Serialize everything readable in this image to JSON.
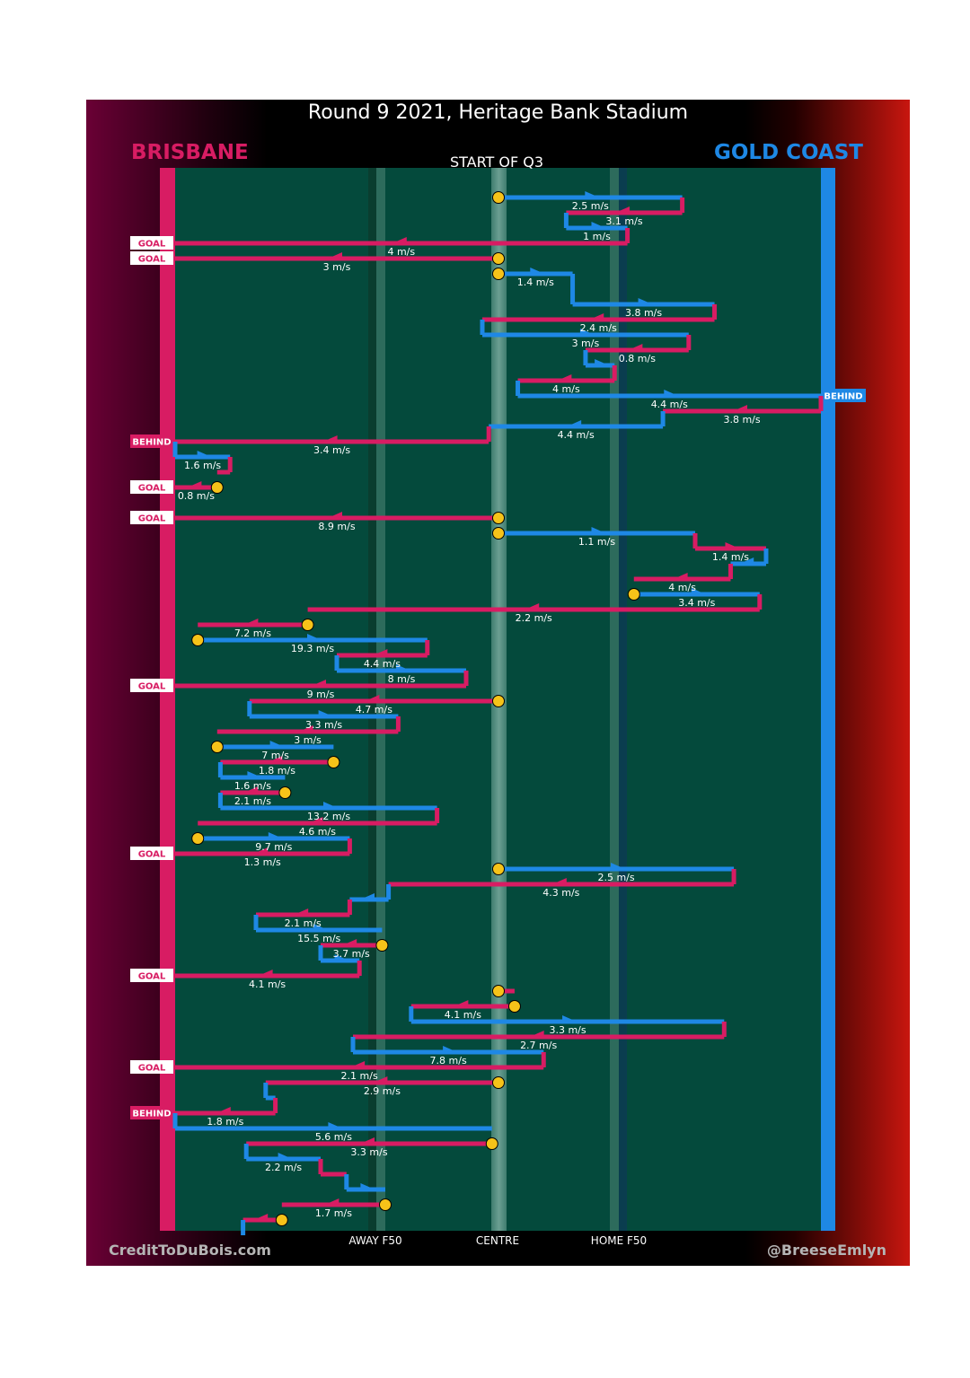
{
  "header": {
    "title": "Round 9 2021, Heritage Bank Stadium",
    "team_left": "BRISBANE",
    "team_right": "GOLD COAST",
    "period": "START OF Q3"
  },
  "footer": {
    "credit_left": "CreditToDuBois.com",
    "credit_right": "@BreeseEmlyn"
  },
  "colors": {
    "brisbane": "#d81c63",
    "goldcoast": "#1e88e5",
    "field": "#044a3c",
    "marker": "#f6c319"
  },
  "chart_data": {
    "type": "line",
    "title": "Round 9 2021, Heritage Bank Stadium",
    "subtitle": "START OF Q3",
    "x_axis": {
      "range": [
        -100,
        100
      ],
      "ticks": [
        {
          "value": -35,
          "label": "AWAY F50"
        },
        {
          "value": 0,
          "label": "CENTRE"
        },
        {
          "value": 35,
          "label": "HOME F50"
        }
      ]
    },
    "y_axis": {
      "description": "possession chains in time order (top to bottom)",
      "range": [
        0,
        70
      ]
    },
    "series_colors": {
      "BRISBANE": "#d81c63",
      "GOLD COAST": "#1e88e5"
    },
    "chains": [
      {
        "team": "GOLD COAST",
        "x0": 0,
        "x1": 57,
        "y": 1,
        "speed": "2.5 m/s",
        "start_marker": true
      },
      {
        "team": "BRISBANE",
        "x0": 57,
        "x1": 21,
        "y": 2,
        "speed": "3.1 m/s"
      },
      {
        "team": "GOLD COAST",
        "x0": 21,
        "x1": 40,
        "y": 3,
        "speed": "1 m/s"
      },
      {
        "team": "BRISBANE",
        "x0": 40,
        "x1": -100,
        "y": 4,
        "speed": "4 m/s",
        "outcome": "GOAL"
      },
      {
        "team": "BRISBANE",
        "x0": 0,
        "x1": -100,
        "y": 5,
        "speed": "3 m/s",
        "outcome": "GOAL",
        "start_marker": true
      },
      {
        "team": "GOLD COAST",
        "x0": 0,
        "x1": 23,
        "y": 6,
        "speed": "1.4 m/s",
        "start_marker": true
      },
      {
        "team": "GOLD COAST",
        "x0": 23,
        "x1": 67,
        "y": 8,
        "speed": "3.8 m/s"
      },
      {
        "team": "BRISBANE",
        "x0": 67,
        "x1": -5,
        "y": 9,
        "speed": "2.4 m/s"
      },
      {
        "team": "GOLD COAST",
        "x0": -5,
        "x1": 59,
        "y": 10,
        "speed": "3 m/s"
      },
      {
        "team": "BRISBANE",
        "x0": 59,
        "x1": 27,
        "y": 11,
        "speed": "0.8 m/s"
      },
      {
        "team": "GOLD COAST",
        "x0": 27,
        "x1": 36,
        "y": 12,
        "speed": ""
      },
      {
        "team": "BRISBANE",
        "x0": 36,
        "x1": 6,
        "y": 13,
        "speed": "4 m/s"
      },
      {
        "team": "GOLD COAST",
        "x0": 6,
        "x1": 100,
        "y": 14,
        "speed": "4.4 m/s",
        "outcome": "BEHIND"
      },
      {
        "team": "BRISBANE",
        "x0": 100,
        "x1": 51,
        "y": 15,
        "speed": "3.8 m/s"
      },
      {
        "team": "GOLD COAST",
        "x0": 51,
        "x1": -3,
        "y": 16,
        "speed": "4.4 m/s"
      },
      {
        "team": "BRISBANE",
        "x0": -3,
        "x1": -100,
        "y": 17,
        "speed": "3.4 m/s",
        "outcome": "BEHIND"
      },
      {
        "team": "GOLD COAST",
        "x0": -100,
        "x1": -83,
        "y": 18,
        "speed": "1.6 m/s"
      },
      {
        "team": "BRISBANE",
        "x0": -83,
        "x1": -87,
        "y": 19,
        "speed": ""
      },
      {
        "team": "BRISBANE",
        "x0": -87,
        "x1": -100,
        "y": 20,
        "speed": "0.8 m/s",
        "outcome": "GOAL",
        "start_marker": true
      },
      {
        "team": "BRISBANE",
        "x0": 0,
        "x1": -100,
        "y": 22,
        "speed": "8.9 m/s",
        "outcome": "GOAL",
        "start_marker": true
      },
      {
        "team": "GOLD COAST",
        "x0": 0,
        "x1": 61,
        "y": 23,
        "speed": "1.1 m/s",
        "start_marker": true
      },
      {
        "team": "BRISBANE",
        "x0": 61,
        "x1": 83,
        "y": 24,
        "speed": "1.4 m/s"
      },
      {
        "team": "GOLD COAST",
        "x0": 83,
        "x1": 72,
        "y": 25,
        "speed": ""
      },
      {
        "team": "BRISBANE",
        "x0": 72,
        "x1": 42,
        "y": 26,
        "speed": "4 m/s"
      },
      {
        "team": "GOLD COAST",
        "x0": 42,
        "x1": 81,
        "y": 27,
        "speed": "3.4 m/s",
        "start_marker": true
      },
      {
        "team": "BRISBANE",
        "x0": 81,
        "x1": -59,
        "y": 28,
        "speed": "2.2 m/s"
      },
      {
        "team": "BRISBANE",
        "x0": -59,
        "x1": -93,
        "y": 29,
        "speed": "7.2 m/s",
        "start_marker": true
      },
      {
        "team": "GOLD COAST",
        "x0": -93,
        "x1": -22,
        "y": 30,
        "speed": "19.3 m/s",
        "start_marker": true
      },
      {
        "team": "BRISBANE",
        "x0": -22,
        "x1": -50,
        "y": 31,
        "speed": "4.4 m/s"
      },
      {
        "team": "GOLD COAST",
        "x0": -50,
        "x1": -10,
        "y": 32,
        "speed": "8 m/s"
      },
      {
        "team": "BRISBANE",
        "x0": -10,
        "x1": -100,
        "y": 33,
        "speed": "9 m/s",
        "outcome": "GOAL"
      },
      {
        "team": "BRISBANE",
        "x0": 0,
        "x1": -77,
        "y": 34,
        "speed": "4.7 m/s",
        "start_marker": true
      },
      {
        "team": "GOLD COAST",
        "x0": -77,
        "x1": -31,
        "y": 35,
        "speed": "3.3 m/s"
      },
      {
        "team": "BRISBANE",
        "x0": -31,
        "x1": -87,
        "y": 36,
        "speed": "3 m/s"
      },
      {
        "team": "GOLD COAST",
        "x0": -87,
        "x1": -51,
        "y": 37,
        "speed": "7 m/s",
        "start_marker": true
      },
      {
        "team": "BRISBANE",
        "x0": -51,
        "x1": -86,
        "y": 38,
        "speed": "1.8 m/s",
        "start_marker": true
      },
      {
        "team": "GOLD COAST",
        "x0": -86,
        "x1": -66,
        "y": 39,
        "speed": "1.6 m/s"
      },
      {
        "team": "BRISBANE",
        "x0": -66,
        "x1": -86,
        "y": 40,
        "speed": "2.1 m/s",
        "start_marker": true
      },
      {
        "team": "GOLD COAST",
        "x0": -86,
        "x1": -19,
        "y": 41,
        "speed": "13.2 m/s"
      },
      {
        "team": "BRISBANE",
        "x0": -19,
        "x1": -93,
        "y": 42,
        "speed": "4.6 m/s"
      },
      {
        "team": "GOLD COAST",
        "x0": -93,
        "x1": -46,
        "y": 43,
        "speed": "9.7 m/s",
        "start_marker": true
      },
      {
        "team": "BRISBANE",
        "x0": -46,
        "x1": -100,
        "y": 44,
        "speed": "1.3 m/s",
        "outcome": "GOAL"
      },
      {
        "team": "GOLD COAST",
        "x0": 0,
        "x1": 73,
        "y": 45,
        "speed": "2.5 m/s",
        "start_marker": true
      },
      {
        "team": "BRISBANE",
        "x0": 73,
        "x1": -34,
        "y": 46,
        "speed": "4.3 m/s"
      },
      {
        "team": "GOLD COAST",
        "x0": -34,
        "x1": -46,
        "y": 47,
        "speed": ""
      },
      {
        "team": "BRISBANE",
        "x0": -46,
        "x1": -75,
        "y": 48,
        "speed": "2.1 m/s"
      },
      {
        "team": "GOLD COAST",
        "x0": -75,
        "x1": -36,
        "y": 49,
        "speed": "15.5 m/s"
      },
      {
        "team": "BRISBANE",
        "x0": -36,
        "x1": -55,
        "y": 50,
        "speed": "3.7 m/s",
        "start_marker": true
      },
      {
        "team": "GOLD COAST",
        "x0": -55,
        "x1": -43,
        "y": 51,
        "speed": ""
      },
      {
        "team": "BRISBANE",
        "x0": -43,
        "x1": -100,
        "y": 52,
        "speed": "4.1 m/s",
        "outcome": "GOAL"
      },
      {
        "team": "BRISBANE",
        "x0": 0,
        "x1": 5,
        "y": 53,
        "speed": "",
        "start_marker": true
      },
      {
        "team": "BRISBANE",
        "x0": 5,
        "x1": -27,
        "y": 54,
        "speed": "4.1 m/s",
        "start_marker": true
      },
      {
        "team": "GOLD COAST",
        "x0": -27,
        "x1": 70,
        "y": 55,
        "speed": "3.3 m/s"
      },
      {
        "team": "BRISBANE",
        "x0": 70,
        "x1": -45,
        "y": 56,
        "speed": "2.7 m/s"
      },
      {
        "team": "GOLD COAST",
        "x0": -45,
        "x1": 14,
        "y": 57,
        "speed": "7.8 m/s"
      },
      {
        "team": "BRISBANE",
        "x0": 14,
        "x1": -100,
        "y": 58,
        "speed": "2.1 m/s",
        "outcome": "GOAL"
      },
      {
        "team": "BRISBANE",
        "x0": 0,
        "x1": -72,
        "y": 59,
        "speed": "2.9 m/s",
        "start_marker": true
      },
      {
        "team": "GOLD COAST",
        "x0": -72,
        "x1": -69,
        "y": 60,
        "speed": ""
      },
      {
        "team": "BRISBANE",
        "x0": -69,
        "x1": -100,
        "y": 61,
        "speed": "1.8 m/s",
        "outcome": "BEHIND"
      },
      {
        "team": "GOLD COAST",
        "x0": -100,
        "x1": -2,
        "y": 62,
        "speed": "5.6 m/s"
      },
      {
        "team": "BRISBANE",
        "x0": -2,
        "x1": -78,
        "y": 63,
        "speed": "3.3 m/s",
        "start_marker": true
      },
      {
        "team": "GOLD COAST",
        "x0": -78,
        "x1": -55,
        "y": 64,
        "speed": "2.2 m/s"
      },
      {
        "team": "BRISBANE",
        "x0": -55,
        "x1": -47,
        "y": 65,
        "speed": ""
      },
      {
        "team": "GOLD COAST",
        "x0": -47,
        "x1": -35,
        "y": 66,
        "speed": ""
      },
      {
        "team": "BRISBANE",
        "x0": -35,
        "x1": -67,
        "y": 67,
        "speed": "1.7 m/s",
        "start_marker": true
      },
      {
        "team": "BRISBANE",
        "x0": -67,
        "x1": -79,
        "y": 68,
        "speed": "",
        "start_marker": true
      },
      {
        "team": "GOLD COAST",
        "x0": -79,
        "x1": -79,
        "y": 69,
        "speed": ""
      }
    ]
  }
}
